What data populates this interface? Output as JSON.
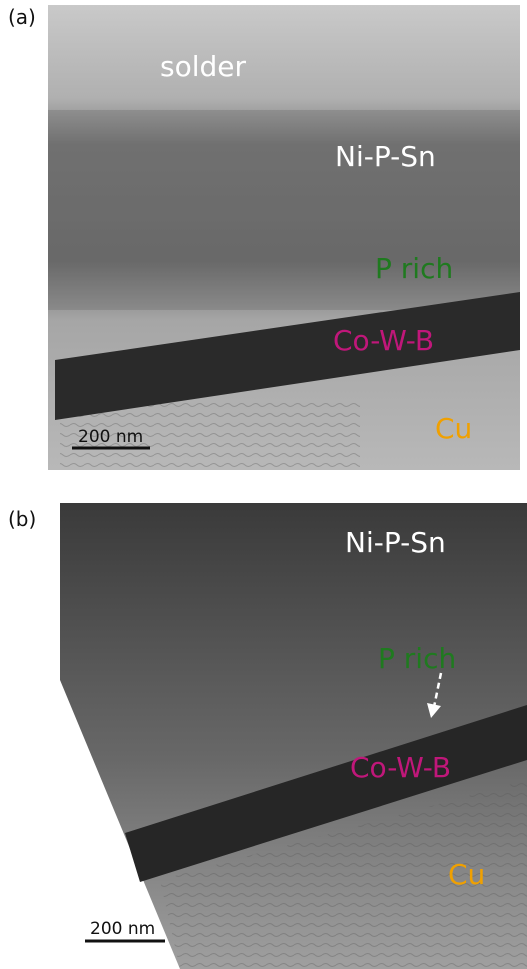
{
  "panels": [
    {
      "label": "(a)",
      "annotations": [
        "solder",
        "Ni-P-Sn",
        "P rich",
        "Co-W-B",
        "Cu"
      ],
      "scale_bar": "200 nm"
    },
    {
      "label": "(b)",
      "annotations": [
        "Ni-P-Sn",
        "P rich",
        "Co-W-B",
        "Cu"
      ],
      "scale_bar": "200 nm"
    }
  ]
}
